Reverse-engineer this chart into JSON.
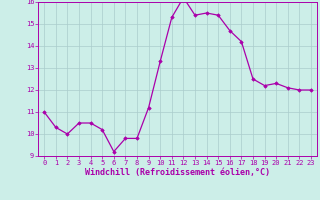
{
  "x": [
    0,
    1,
    2,
    3,
    4,
    5,
    6,
    7,
    8,
    9,
    10,
    11,
    12,
    13,
    14,
    15,
    16,
    17,
    18,
    19,
    20,
    21,
    22,
    23
  ],
  "y": [
    11.0,
    10.3,
    10.0,
    10.5,
    10.5,
    10.2,
    9.2,
    9.8,
    9.8,
    11.2,
    13.3,
    15.3,
    16.2,
    15.4,
    15.5,
    15.4,
    14.7,
    14.2,
    12.5,
    12.2,
    12.3,
    12.1,
    12.0,
    12.0
  ],
  "ylim": [
    9,
    16
  ],
  "yticks": [
    9,
    10,
    11,
    12,
    13,
    14,
    15,
    16
  ],
  "xticks": [
    0,
    1,
    2,
    3,
    4,
    5,
    6,
    7,
    8,
    9,
    10,
    11,
    12,
    13,
    14,
    15,
    16,
    17,
    18,
    19,
    20,
    21,
    22,
    23
  ],
  "xlabel": "Windchill (Refroidissement éolien,°C)",
  "line_color": "#aa00aa",
  "marker": "D",
  "marker_size": 1.8,
  "bg_color": "#cceee8",
  "grid_color": "#aacccc",
  "tick_fontsize": 5.0,
  "xlabel_fontsize": 6.0
}
